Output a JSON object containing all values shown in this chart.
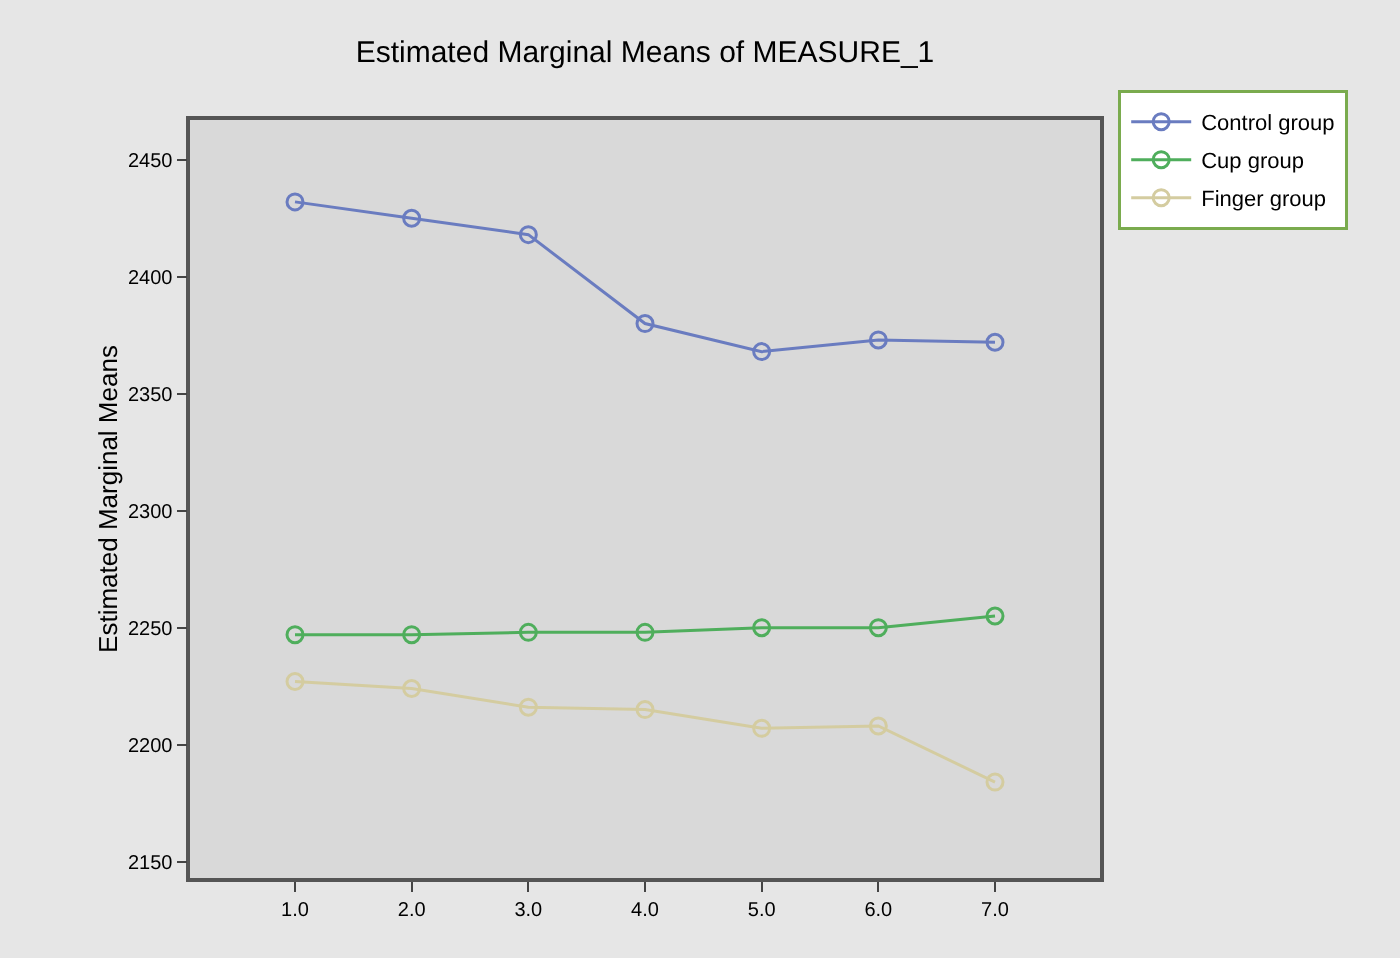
{
  "chart_data": {
    "type": "line",
    "title": "Estimated Marginal Means of MEASURE_1",
    "ylabel": "Estimated Marginal Means",
    "x": [
      1,
      2,
      3,
      4,
      5,
      6,
      7
    ],
    "series": [
      {
        "name": "Control group",
        "color": "#6a7cc0",
        "values": [
          2432,
          2425,
          2418,
          2380,
          2368,
          2373,
          2372
        ]
      },
      {
        "name": "Cup group",
        "color": "#4fae5c",
        "values": [
          2247,
          2247,
          2248,
          2248,
          2250,
          2250,
          2255
        ]
      },
      {
        "name": "Finger group",
        "color": "#d4cca0",
        "values": [
          2227,
          2224,
          2216,
          2215,
          2207,
          2208,
          2184
        ]
      }
    ],
    "xlim": [
      0.1,
      7.9
    ],
    "xticks": [
      {
        "value": 1,
        "label": "1.0"
      },
      {
        "value": 2,
        "label": "2.0"
      },
      {
        "value": 3,
        "label": "3.0"
      },
      {
        "value": 4,
        "label": "4.0"
      },
      {
        "value": 5,
        "label": "5.0"
      },
      {
        "value": 6,
        "label": "6.0"
      },
      {
        "value": 7,
        "label": "7.0"
      }
    ],
    "ylim": [
      2143,
      2467
    ],
    "yticks": [
      2150,
      2200,
      2250,
      2300,
      2350,
      2400,
      2450
    ],
    "grid": false,
    "legend": "top right",
    "marker": "circle",
    "line_style": "solid"
  }
}
